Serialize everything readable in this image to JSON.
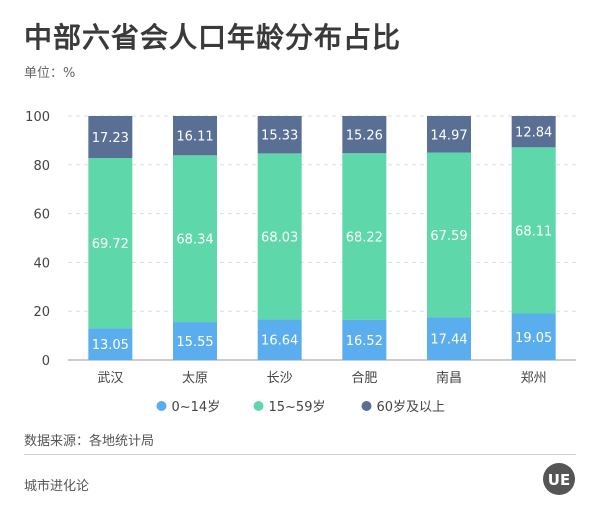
{
  "header": {
    "title": "中部六省会人口年龄分布占比",
    "unit": "单位：%"
  },
  "footer": {
    "source": "数据来源：各地统计局",
    "brand": "城市进化论",
    "logo_text": "UE"
  },
  "chart_data": {
    "type": "bar",
    "stacked": true,
    "title": "中部六省会人口年龄分布占比",
    "categories": [
      "武汉",
      "太原",
      "长沙",
      "合肥",
      "南昌",
      "郑州"
    ],
    "ylim": [
      0,
      100
    ],
    "yticks": [
      0,
      20,
      40,
      60,
      80,
      100
    ],
    "grid": true,
    "legend_position": "bottom",
    "series": [
      {
        "name": "0~14岁",
        "color": "#5aaeee",
        "values": [
          13.05,
          15.55,
          16.64,
          16.52,
          17.44,
          19.05
        ]
      },
      {
        "name": "15~59岁",
        "color": "#5ed8ab",
        "values": [
          69.72,
          68.34,
          68.03,
          68.22,
          67.59,
          68.11
        ]
      },
      {
        "name": "60岁及以上",
        "color": "#5a6f94",
        "values": [
          17.23,
          16.11,
          15.33,
          15.26,
          14.97,
          12.84
        ]
      }
    ]
  }
}
